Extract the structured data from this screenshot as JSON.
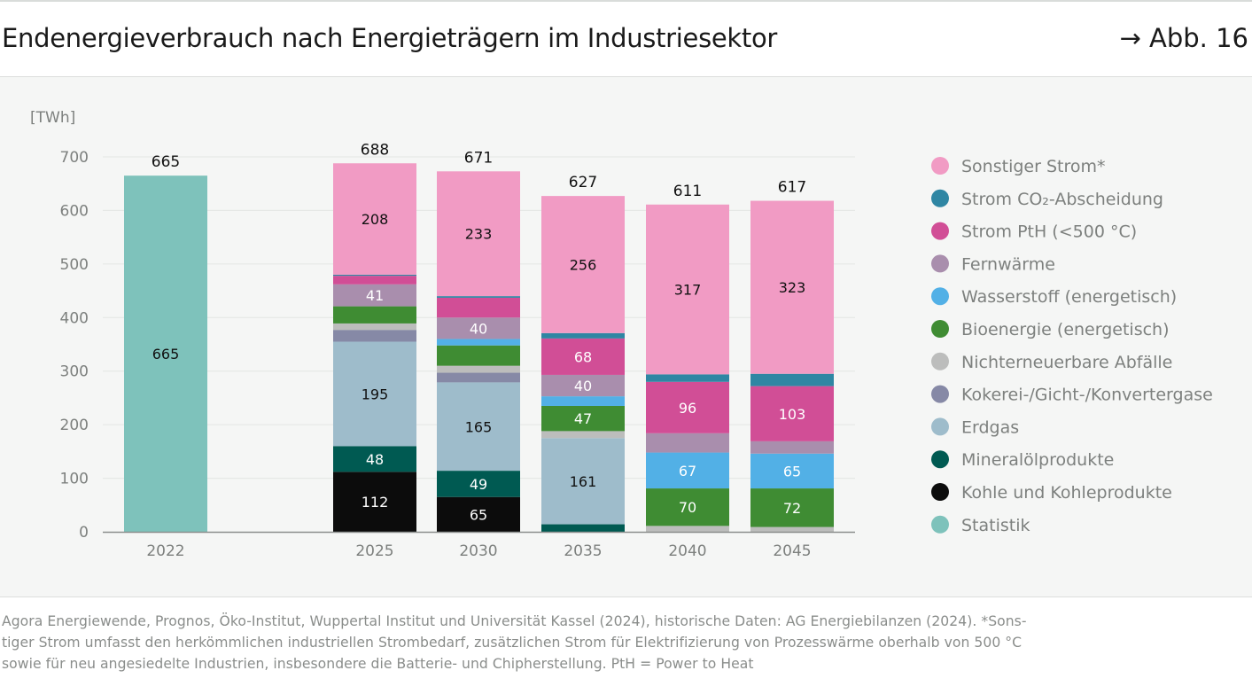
{
  "header": {
    "title": "Endenergieverbrauch nach Energieträgern im Industriesektor",
    "figure_ref": "→ Abb. 16"
  },
  "source": {
    "line1": "Agora Energiewende, Prognos, Öko-Institut, Wuppertal Institut und Universität Kassel (2024), historische Daten: AG Energiebilanzen (2024). *Sons-",
    "line2": "tiger Strom umfasst den herkömmlichen industriellen Strombedarf, zusätzlichen Strom für Elektrifizierung von Prozesswärme oberhalb von 500 °C",
    "line3": "sowie für neu angesiedelte Industrien, insbesondere die Batterie- und Chipherstellung. PtH = Power to Heat"
  },
  "colors": {
    "Kohle und Kohleprodukte": "#0c0c0c",
    "Mineralölprodukte": "#005a52",
    "Erdgas": "#9ebccb",
    "Kokerei-/Gicht-/Konvertergase": "#8689a6",
    "Nichterneuerbare Abfälle": "#bcbdbc",
    "Bioenergie (energetisch)": "#3f8c33",
    "Wasserstoff (energetisch)": "#52b0e6",
    "Fernwärme": "#a98ead",
    "Strom PtH (<500 °C)": "#d14e96",
    "Strom CO₂-Abscheidung": "#2f86a3",
    "Sonstiger Strom*": "#f19bc4",
    "Statistik": "#7ec2bb"
  },
  "chart_data": {
    "type": "bar",
    "stacked": true,
    "unit_label": "[TWh]",
    "ylim": [
      0,
      700
    ],
    "yticks": [
      0,
      100,
      200,
      300,
      400,
      500,
      600,
      700
    ],
    "categories": [
      "2022",
      "2025",
      "2030",
      "2035",
      "2040",
      "2045"
    ],
    "totals": [
      665,
      688,
      671,
      627,
      611,
      617
    ],
    "series": [
      {
        "name": "Statistik",
        "values": [
          665,
          0,
          0,
          0,
          0,
          0
        ],
        "labels": [
          "665",
          "",
          "",
          "",
          "",
          ""
        ]
      },
      {
        "name": "Kohle und Kohleprodukte",
        "values": [
          0,
          112,
          65,
          0,
          0,
          0
        ],
        "labels": [
          "",
          "112",
          "65",
          "",
          "",
          ""
        ]
      },
      {
        "name": "Mineralölprodukte",
        "values": [
          0,
          48,
          49,
          14,
          0,
          0
        ],
        "labels": [
          "",
          "48",
          "49",
          "",
          "",
          ""
        ]
      },
      {
        "name": "Erdgas",
        "values": [
          0,
          195,
          165,
          161,
          0,
          0
        ],
        "labels": [
          "",
          "195",
          "165",
          "161",
          "",
          ""
        ]
      },
      {
        "name": "Kokerei-/Gicht-/Konvertergase",
        "values": [
          0,
          22,
          18,
          0,
          0,
          0
        ],
        "labels": [
          "",
          "",
          "",
          "",
          "",
          ""
        ]
      },
      {
        "name": "Nichterneuerbare Abfälle",
        "values": [
          0,
          12,
          13,
          13,
          11,
          9
        ],
        "labels": [
          "",
          "",
          "",
          "",
          "",
          ""
        ]
      },
      {
        "name": "Bioenergie (energetisch)",
        "values": [
          0,
          32,
          38,
          47,
          70,
          72
        ],
        "labels": [
          "",
          "",
          "",
          "47",
          "70",
          "72"
        ]
      },
      {
        "name": "Wasserstoff (energetisch)",
        "values": [
          0,
          0,
          12,
          18,
          67,
          65
        ],
        "labels": [
          "",
          "",
          "",
          "",
          "67",
          "65"
        ]
      },
      {
        "name": "Fernwärme",
        "values": [
          0,
          41,
          40,
          40,
          36,
          23
        ],
        "labels": [
          "",
          "41",
          "40",
          "40",
          "",
          ""
        ]
      },
      {
        "name": "Strom PtH (<500 °C)",
        "values": [
          0,
          16,
          37,
          68,
          96,
          103
        ],
        "labels": [
          "",
          "",
          "",
          "68",
          "96",
          "103"
        ]
      },
      {
        "name": "Strom CO₂-Abscheidung",
        "values": [
          0,
          2,
          3,
          10,
          14,
          23
        ],
        "labels": [
          "",
          "",
          "",
          "",
          "",
          ""
        ]
      },
      {
        "name": "Sonstiger Strom*",
        "values": [
          0,
          208,
          233,
          256,
          317,
          323
        ],
        "labels": [
          "",
          "208",
          "233",
          "256",
          "317",
          "323"
        ]
      }
    ],
    "legend": [
      "Sonstiger Strom*",
      "Strom CO₂-Abscheidung",
      "Strom PtH (<500 °C)",
      "Fernwärme",
      "Wasserstoff (energetisch)",
      "Bioenergie (energetisch)",
      "Nichterneuerbare Abfälle",
      "Kokerei-/Gicht-/Konvertergase",
      "Erdgas",
      "Mineralölprodukte",
      "Kohle und Kohleprodukte",
      "Statistik"
    ],
    "legend_position": "right"
  }
}
